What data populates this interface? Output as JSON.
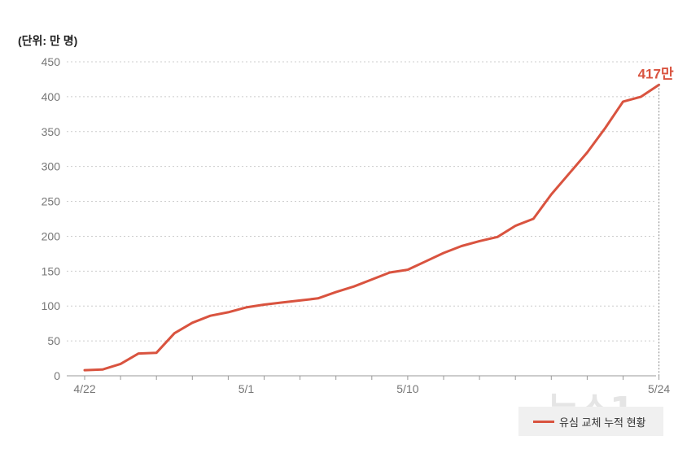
{
  "unit_label": "(단위: 만 명)",
  "legend_label": "유심 교체 누적 현황",
  "watermark": "뉴스1",
  "end_label": "417만",
  "colors": {
    "line": "#d9533f",
    "grid": "#cccccc",
    "axis": "#999999",
    "text": "#777777"
  },
  "chart_data": {
    "type": "line",
    "title": "",
    "xlabel": "",
    "ylabel": "",
    "ylim": [
      0,
      450
    ],
    "yticks": [
      0,
      50,
      100,
      150,
      200,
      250,
      300,
      350,
      400,
      450
    ],
    "xtick_labels": [
      "4/22",
      "5/1",
      "5/10",
      "5/24"
    ],
    "grid": true,
    "legend_position": "bottom-right",
    "series": [
      {
        "name": "유심 교체 누적 현황",
        "x": [
          "4/22",
          "4/23",
          "4/24",
          "4/25",
          "4/26",
          "4/27",
          "4/28",
          "4/29",
          "4/30",
          "5/1",
          "5/2",
          "5/3",
          "5/4",
          "5/5",
          "5/6",
          "5/7",
          "5/8",
          "5/9",
          "5/10",
          "5/11",
          "5/12",
          "5/13",
          "5/14",
          "5/15",
          "5/16",
          "5/17",
          "5/18",
          "5/19",
          "5/20",
          "5/21",
          "5/22",
          "5/23",
          "5/24"
        ],
        "values": [
          8,
          9,
          17,
          32,
          33,
          61,
          76,
          86,
          91,
          98,
          102,
          105,
          108,
          111,
          120,
          128,
          138,
          148,
          152,
          164,
          176,
          186,
          193,
          199,
          215,
          225,
          260,
          290,
          320,
          355,
          393,
          400,
          417
        ]
      }
    ]
  }
}
